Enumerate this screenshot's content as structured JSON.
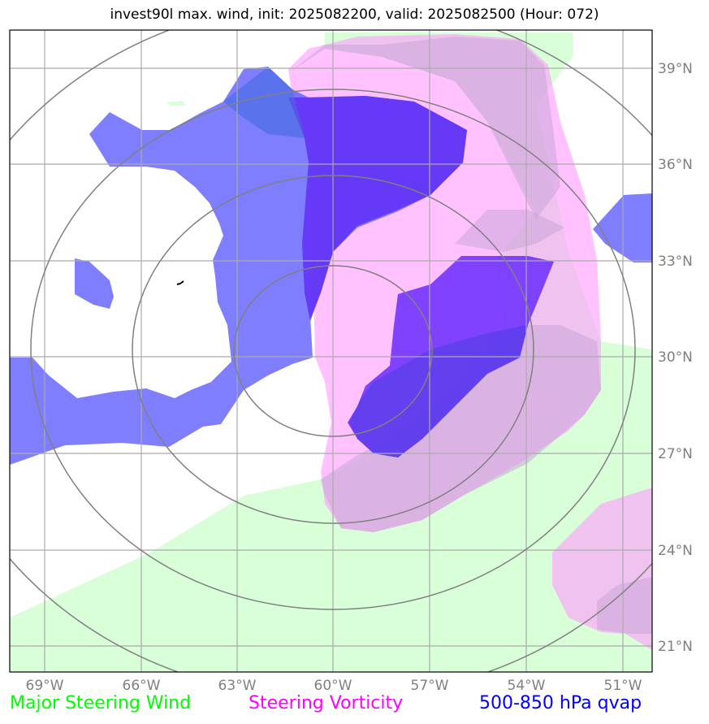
{
  "title": "invest90l max. wind, init: 2025082200, valid: 2025082500 (Hour: 072)",
  "lat_labels": [
    "39°N",
    "36°N",
    "33°N",
    "30°N",
    "27°N",
    "24°N",
    "21°N"
  ],
  "lon_labels": [
    "69°W",
    "66°W",
    "63°W",
    "60°W",
    "57°W",
    "54°W",
    "51°W"
  ],
  "legend": [
    {
      "label": "Major Steering Wind",
      "color": "#00ff00"
    },
    {
      "label": "Steering Vorticity",
      "color": "#ff00ff"
    },
    {
      "label": "500-850 hPa qvap",
      "color": "#0000ff"
    }
  ],
  "colors": {
    "wind_fill": "#ccffcc",
    "vorticity_fill": "#ffb3ff",
    "qvap_fill": "#6666ff",
    "qvap_dark_fill": "#6a2cff",
    "gridline": "#aaaaaa",
    "range_ring": "#808080"
  }
}
